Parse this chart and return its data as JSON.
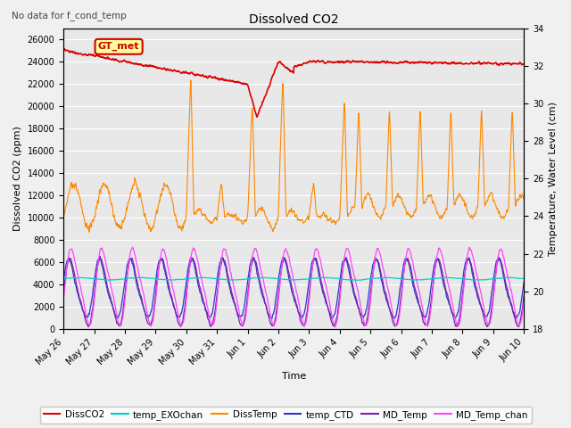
{
  "title": "Dissolved CO2",
  "subtitle": "No data for f_cond_temp",
  "xlabel": "Time",
  "ylabel_left": "Dissolved CO2 (ppm)",
  "ylabel_right": "Temperature, Water Level (cm)",
  "ylim_left": [
    0,
    27000
  ],
  "ylim_right": [
    18,
    34
  ],
  "yticks_left": [
    0,
    2000,
    4000,
    6000,
    8000,
    10000,
    12000,
    14000,
    16000,
    18000,
    20000,
    22000,
    24000,
    26000
  ],
  "yticks_right": [
    18,
    20,
    22,
    24,
    26,
    28,
    30,
    32,
    34
  ],
  "xtick_labels": [
    "May 26",
    "May 27",
    "May 28",
    "May 29",
    "May 30",
    "May 31",
    "Jun 1",
    "Jun 2",
    "Jun 3",
    "Jun 4",
    "Jun 5",
    "Jun 6",
    "Jun 7",
    "Jun 8",
    "Jun 9",
    "Jun 10"
  ],
  "gt_met_box_color": "#ffff99",
  "gt_met_text_color": "#cc0000",
  "background_color": "#e8e8e8",
  "grid_color": "#ffffff",
  "figsize": [
    6.4,
    4.8
  ],
  "dpi": 100
}
